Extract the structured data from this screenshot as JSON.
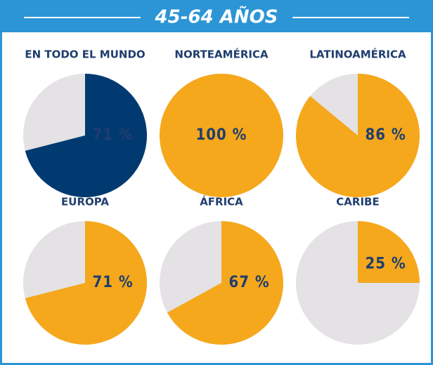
{
  "header": {
    "title": "45-64 AÑOS"
  },
  "chart_data": [
    {
      "type": "pie",
      "title": "EN TODO EL MUNDO",
      "values": [
        71
      ],
      "value_labels": [
        "71 %"
      ],
      "color": "#003a70",
      "background": "#e4e2e4"
    },
    {
      "type": "pie",
      "title": "NORTEAMÉRICA",
      "values": [
        100
      ],
      "value_labels": [
        "100 %"
      ],
      "color": "#f5a81c",
      "background": "#e4e2e4"
    },
    {
      "type": "pie",
      "title": "LATINOAMÉRICA",
      "values": [
        86
      ],
      "value_labels": [
        "86 %"
      ],
      "color": "#f5a81c",
      "background": "#e4e2e4"
    },
    {
      "type": "pie",
      "title": "EUROPA",
      "values": [
        71
      ],
      "value_labels": [
        "71 %"
      ],
      "color": "#f5a81c",
      "background": "#e4e2e4"
    },
    {
      "type": "pie",
      "title": "ÁFRICA",
      "values": [
        67
      ],
      "value_labels": [
        "67 %"
      ],
      "color": "#f5a81c",
      "background": "#e4e2e4"
    },
    {
      "type": "pie",
      "title": "CARIBE",
      "values": [
        25
      ],
      "value_labels": [
        "25 %"
      ],
      "color": "#f5a81c",
      "background": "#e4e2e4"
    }
  ]
}
